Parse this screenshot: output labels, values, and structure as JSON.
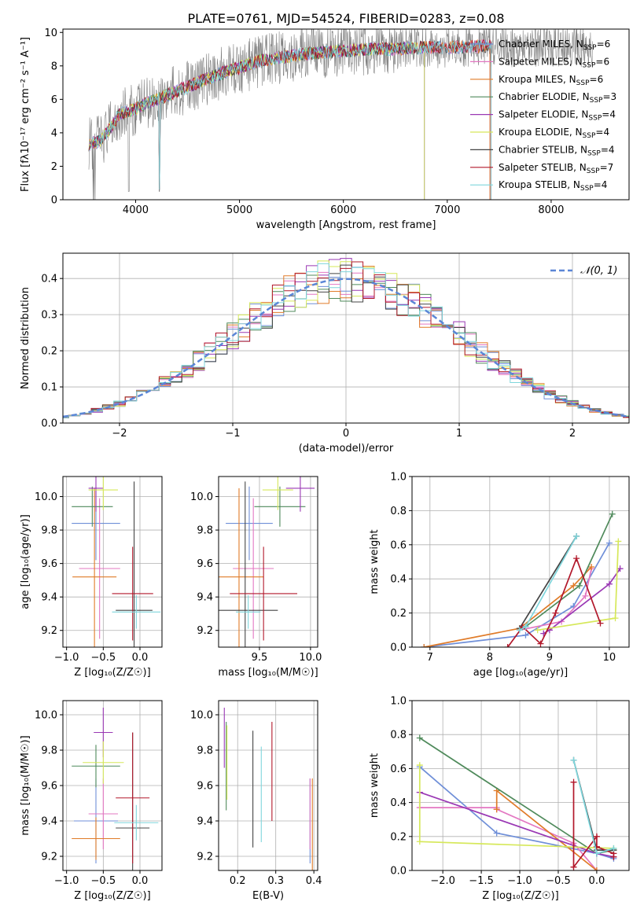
{
  "figure_title": "PLATE=0761, MJD=54524, FIBERID=0283, z=0.08",
  "colors": {
    "Chabrier MILES": "#6f8fd8",
    "Salpeter MILES": "#e377c2",
    "Kroupa MILES": "#e07b28",
    "Chabrier ELODIE": "#4f8a5b",
    "Salpeter ELODIE": "#9a38b4",
    "Kroupa ELODIE": "#d6e85a",
    "Chabrier STELIB": "#444444",
    "Salpeter STELIB": "#b2182b",
    "Kroupa STELIB": "#7fd6dc",
    "data": "#808080",
    "gaussian": "#5b86d6"
  },
  "chart_data": [
    {
      "id": "spectrum",
      "type": "line",
      "xlabel": "wavelength [Angstrom, rest frame]",
      "ylabel": "Flux [fλ10⁻¹⁷ erg cm⁻² s⁻¹ A⁻¹]",
      "xlim": [
        3300,
        8750
      ],
      "ylim": [
        0,
        10.2
      ],
      "xticks": [
        4000,
        5000,
        6000,
        7000,
        8000
      ],
      "yticks": [
        0,
        2,
        4,
        6,
        8,
        10
      ],
      "grid": false,
      "legend_placement": "right",
      "legend": [
        {
          "label": "Chabrier MILES, N",
          "sub": "SSP",
          "tail": "=6"
        },
        {
          "label": "Salpeter MILES, N",
          "sub": "SSP",
          "tail": "=6"
        },
        {
          "label": "Kroupa MILES, N",
          "sub": "SSP",
          "tail": "=6"
        },
        {
          "label": "Chabrier ELODIE, N",
          "sub": "SSP",
          "tail": "=3"
        },
        {
          "label": "Salpeter ELODIE, N",
          "sub": "SSP",
          "tail": "=4"
        },
        {
          "label": "Kroupa ELODIE, N",
          "sub": "SSP",
          "tail": "=4"
        },
        {
          "label": "Chabrier STELIB, N",
          "sub": "SSP",
          "tail": "=4"
        },
        {
          "label": "Salpeter STELIB, N",
          "sub": "SSP",
          "tail": "=7"
        },
        {
          "label": "Kroupa STELIB, N",
          "sub": "SSP",
          "tail": "=4"
        }
      ],
      "continuum": {
        "x": [
          3550,
          3650,
          3750,
          3850,
          3950,
          4050,
          4150,
          4250,
          4400,
          4600,
          4800,
          5000,
          5200,
          5400,
          5600,
          5800,
          6000,
          6200,
          6400,
          6600,
          6800,
          7000,
          7200,
          7400
        ],
        "y": [
          3.3,
          3.5,
          4.2,
          5.2,
          5.3,
          5.6,
          5.9,
          6.1,
          6.5,
          7.0,
          7.5,
          7.9,
          8.3,
          8.5,
          8.7,
          8.8,
          8.9,
          9.0,
          9.0,
          9.05,
          9.1,
          9.1,
          9.15,
          9.2
        ]
      },
      "model_end_wavelength": [
        7410,
        7410,
        7410,
        6780,
        6780,
        6780,
        7420,
        7420,
        7420
      ],
      "data_range": [
        3550,
        8400
      ]
    },
    {
      "id": "residuals",
      "type": "area",
      "xlabel": "(data-model)/error",
      "ylabel": "Normed distribution",
      "xlim": [
        -2.5,
        2.5
      ],
      "ylim": [
        0,
        0.47
      ],
      "xticks": [
        -2,
        -1,
        0,
        1,
        2
      ],
      "yticks": [
        0.0,
        0.1,
        0.2,
        0.3,
        0.4
      ],
      "grid": true,
      "legend_placement": "top-right",
      "legend": [
        {
          "label": "𝒩(0, 1)"
        }
      ],
      "bin_width": 0.1
    },
    {
      "id": "age_vs_Z",
      "type": "scatter",
      "xlabel": "Z [log₁₀(Z/Z☉)]",
      "ylabel": "age  [log₁₀(age/yr)]",
      "xlim": [
        -1.05,
        0.3
      ],
      "ylim": [
        9.1,
        10.12
      ],
      "xticks": [
        -1.0,
        -0.5,
        0.0
      ],
      "yticks": [
        9.2,
        9.4,
        9.6,
        9.8,
        10.0
      ],
      "grid": true,
      "points": [
        {
          "model": "Chabrier MILES",
          "x": -0.6,
          "y": 9.84,
          "xerr": 0.33,
          "yerr": 0.22
        },
        {
          "model": "Salpeter MILES",
          "x": -0.55,
          "y": 9.57,
          "xerr": 0.28,
          "yerr": 0.42
        },
        {
          "model": "Kroupa MILES",
          "x": -0.62,
          "y": 9.52,
          "xerr": 0.3,
          "yerr": 0.53
        },
        {
          "model": "Chabrier ELODIE",
          "x": -0.65,
          "y": 9.94,
          "xerr": 0.28,
          "yerr": 0.12
        },
        {
          "model": "Salpeter ELODIE",
          "x": -0.6,
          "y": 10.05,
          "xerr": 0.1,
          "yerr": 0.14
        },
        {
          "model": "Kroupa ELODIE",
          "x": -0.5,
          "y": 10.04,
          "xerr": 0.2,
          "yerr": 0.12
        },
        {
          "model": "Chabrier STELIB",
          "x": -0.08,
          "y": 9.32,
          "xerr": 0.25,
          "yerr": 0.77
        },
        {
          "model": "Salpeter STELIB",
          "x": -0.1,
          "y": 9.42,
          "xerr": 0.28,
          "yerr": 0.28
        },
        {
          "model": "Kroupa STELIB",
          "x": -0.05,
          "y": 9.31,
          "xerr": 0.33,
          "yerr": 0.1
        }
      ]
    },
    {
      "id": "age_vs_mass",
      "type": "scatter",
      "xlabel": "mass [log₁₀(M/M☉)]",
      "ylabel": "",
      "xlim": [
        9.1,
        10.07
      ],
      "ylim": [
        9.1,
        10.12
      ],
      "xticks": [
        9.5,
        10.0
      ],
      "yticks": [
        9.2,
        9.4,
        9.6,
        9.8,
        10.0
      ],
      "grid": true,
      "points": [
        {
          "model": "Chabrier MILES",
          "x": 9.4,
          "y": 9.84,
          "xerr": 0.23,
          "yerr": 0.22
        },
        {
          "model": "Salpeter MILES",
          "x": 9.44,
          "y": 9.57,
          "xerr": 0.2,
          "yerr": 0.42
        },
        {
          "model": "Kroupa MILES",
          "x": 9.3,
          "y": 9.52,
          "xerr": 0.24,
          "yerr": 0.53
        },
        {
          "model": "Chabrier ELODIE",
          "x": 9.7,
          "y": 9.94,
          "xerr": 0.25,
          "yerr": 0.12
        },
        {
          "model": "Salpeter ELODIE",
          "x": 9.9,
          "y": 10.05,
          "xerr": 0.14,
          "yerr": 0.14
        },
        {
          "model": "Kroupa ELODIE",
          "x": 9.68,
          "y": 10.04,
          "xerr": 0.15,
          "yerr": 0.12
        },
        {
          "model": "Chabrier STELIB",
          "x": 9.36,
          "y": 9.32,
          "xerr": 0.32,
          "yerr": 0.77
        },
        {
          "model": "Salpeter STELIB",
          "x": 9.54,
          "y": 9.42,
          "xerr": 0.33,
          "yerr": 0.28
        },
        {
          "model": "Kroupa STELIB",
          "x": 9.39,
          "y": 9.31,
          "xerr": 0.12,
          "yerr": 0.1
        }
      ]
    },
    {
      "id": "mass_weight_vs_age",
      "type": "line",
      "xlabel": "age  [log₁₀(age/yr)]",
      "ylabel": "mass weight",
      "xlim": [
        6.7,
        10.33
      ],
      "ylim": [
        0,
        1.0
      ],
      "xticks": [
        7,
        8,
        9,
        10
      ],
      "yticks": [
        0.0,
        0.2,
        0.4,
        0.6,
        0.8,
        1.0
      ],
      "grid": true,
      "series": [
        {
          "model": "Chabrier MILES",
          "x": [
            6.9,
            8.6,
            9.4,
            10.0
          ],
          "y": [
            0.0,
            0.07,
            0.24,
            0.61
          ]
        },
        {
          "model": "Salpeter MILES",
          "x": [
            8.5,
            9.2,
            9.6,
            9.7
          ],
          "y": [
            0.1,
            0.15,
            0.3,
            0.46
          ]
        },
        {
          "model": "Kroupa MILES",
          "x": [
            6.9,
            8.5,
            9.4,
            9.7
          ],
          "y": [
            0.0,
            0.11,
            0.36,
            0.47
          ]
        },
        {
          "model": "Chabrier ELODIE",
          "x": [
            8.6,
            9.5,
            10.05
          ],
          "y": [
            0.12,
            0.36,
            0.78
          ]
        },
        {
          "model": "Salpeter ELODIE",
          "x": [
            8.9,
            9.0,
            10.0,
            10.18
          ],
          "y": [
            0.08,
            0.1,
            0.37,
            0.46
          ]
        },
        {
          "model": "Kroupa ELODIE",
          "x": [
            8.8,
            10.1,
            10.15
          ],
          "y": [
            0.1,
            0.17,
            0.62
          ]
        },
        {
          "model": "Chabrier STELIB",
          "x": [
            8.5,
            9.45
          ],
          "y": [
            0.11,
            0.65
          ]
        },
        {
          "model": "Salpeter STELIB",
          "x": [
            8.3,
            8.55,
            8.85,
            9.1,
            9.45,
            9.85
          ],
          "y": [
            0.0,
            0.12,
            0.02,
            0.2,
            0.52,
            0.14
          ]
        },
        {
          "model": "Kroupa STELIB",
          "x": [
            8.5,
            8.6,
            9.45
          ],
          "y": [
            0.1,
            0.12,
            0.65
          ]
        }
      ]
    },
    {
      "id": "mass_vs_Z",
      "type": "scatter",
      "xlabel": "Z [log₁₀(Z/Z☉)]",
      "ylabel": "mass [log₁₀(M/M☉)]",
      "xlim": [
        -1.05,
        0.3
      ],
      "ylim": [
        9.12,
        10.08
      ],
      "xticks": [
        -1.0,
        -0.5,
        0.0
      ],
      "yticks": [
        9.2,
        9.4,
        9.6,
        9.8,
        10.0
      ],
      "grid": true,
      "points": [
        {
          "model": "Chabrier MILES",
          "x": -0.6,
          "y": 9.4,
          "xerr": 0.3,
          "yerr": 0.24
        },
        {
          "model": "Salpeter MILES",
          "x": -0.5,
          "y": 9.44,
          "xerr": 0.2,
          "yerr": 0.2
        },
        {
          "model": "Kroupa MILES",
          "x": -0.6,
          "y": 9.3,
          "xerr": 0.33,
          "yerr": 0.12
        },
        {
          "model": "Chabrier ELODIE",
          "x": -0.6,
          "y": 9.71,
          "xerr": 0.33,
          "yerr": 0.12
        },
        {
          "model": "Salpeter ELODIE",
          "x": -0.5,
          "y": 9.9,
          "xerr": 0.13,
          "yerr": 0.14
        },
        {
          "model": "Kroupa ELODIE",
          "x": -0.5,
          "y": 9.73,
          "xerr": 0.28,
          "yerr": 0.12
        },
        {
          "model": "Chabrier STELIB",
          "x": -0.1,
          "y": 9.36,
          "xerr": 0.23,
          "yerr": 0.54
        },
        {
          "model": "Salpeter STELIB",
          "x": -0.1,
          "y": 9.53,
          "xerr": 0.23,
          "yerr": 0.37
        },
        {
          "model": "Kroupa STELIB",
          "x": -0.05,
          "y": 9.39,
          "xerr": 0.3,
          "yerr": 0.1
        }
      ]
    },
    {
      "id": "mass_vs_ebv",
      "type": "scatter",
      "xlabel": "E(B-V)",
      "ylabel": "",
      "xlim": [
        0.15,
        0.41
      ],
      "ylim": [
        9.12,
        10.08
      ],
      "xticks": [
        0.2,
        0.3,
        0.4
      ],
      "yticks": [
        9.2,
        9.4,
        9.6,
        9.8,
        10.0
      ],
      "grid": true,
      "points": [
        {
          "model": "Chabrier MILES",
          "x": 0.39,
          "y": 9.4,
          "yerr": 0.24
        },
        {
          "model": "Salpeter MILES",
          "x": 0.39,
          "y": 9.44,
          "yerr": 0.2
        },
        {
          "model": "Kroupa MILES",
          "x": 0.396,
          "y": 9.3,
          "yerr": 0.34
        },
        {
          "model": "Chabrier ELODIE",
          "x": 0.17,
          "y": 9.71,
          "yerr": 0.25
        },
        {
          "model": "Salpeter ELODIE",
          "x": 0.165,
          "y": 9.87,
          "yerr": 0.17
        },
        {
          "model": "Kroupa ELODIE",
          "x": 0.172,
          "y": 9.73,
          "yerr": 0.21
        },
        {
          "model": "Chabrier STELIB",
          "x": 0.24,
          "y": 9.58,
          "yerr": 0.33
        },
        {
          "model": "Salpeter STELIB",
          "x": 0.29,
          "y": 9.68,
          "yerr": 0.28
        },
        {
          "model": "Kroupa STELIB",
          "x": 0.262,
          "y": 9.55,
          "yerr": 0.27
        }
      ]
    },
    {
      "id": "mass_weight_vs_Z",
      "type": "line",
      "xlabel": "Z [log₁₀(Z/Z☉)]",
      "ylabel": "mass weight",
      "xlim": [
        -2.4,
        0.42
      ],
      "ylim": [
        0,
        1.0
      ],
      "xticks": [
        -2.0,
        -1.5,
        -1.0,
        -0.5,
        0.0
      ],
      "yticks": [
        0.0,
        0.2,
        0.4,
        0.6,
        0.8,
        1.0
      ],
      "grid": true,
      "series": [
        {
          "model": "Chabrier MILES",
          "x": [
            -2.3,
            -1.3,
            0.0,
            0.22
          ],
          "y": [
            0.61,
            0.22,
            0.1,
            0.07
          ]
        },
        {
          "model": "Salpeter MILES",
          "x": [
            -2.3,
            -2.3,
            -1.3,
            -1.3,
            -0.3,
            0.0
          ],
          "y": [
            0.46,
            0.37,
            0.37,
            0.36,
            0.16,
            0.0
          ]
        },
        {
          "model": "Kroupa MILES",
          "x": [
            -1.3,
            -1.3,
            0.0
          ],
          "y": [
            0.36,
            0.47,
            0.0
          ]
        },
        {
          "model": "Chabrier ELODIE",
          "x": [
            -2.3,
            0.0,
            0.22
          ],
          "y": [
            0.78,
            0.1,
            0.12
          ]
        },
        {
          "model": "Salpeter ELODIE",
          "x": [
            -2.3,
            0.0,
            0.22
          ],
          "y": [
            0.46,
            0.1,
            0.08
          ]
        },
        {
          "model": "Kroupa ELODIE",
          "x": [
            -2.3,
            -2.3,
            0.22
          ],
          "y": [
            0.62,
            0.17,
            0.13
          ]
        },
        {
          "model": "Chabrier STELIB",
          "x": [
            -0.3,
            0.0,
            0.22
          ],
          "y": [
            0.65,
            0.12,
            0.12
          ]
        },
        {
          "model": "Salpeter STELIB",
          "x": [
            -0.3,
            -0.3,
            0.0,
            0.0,
            0.22,
            0.22
          ],
          "y": [
            0.52,
            0.02,
            0.2,
            0.14,
            0.1,
            0.08
          ]
        },
        {
          "model": "Kroupa STELIB",
          "x": [
            -0.3,
            0.0,
            0.22
          ],
          "y": [
            0.65,
            0.1,
            0.13
          ]
        }
      ]
    }
  ]
}
